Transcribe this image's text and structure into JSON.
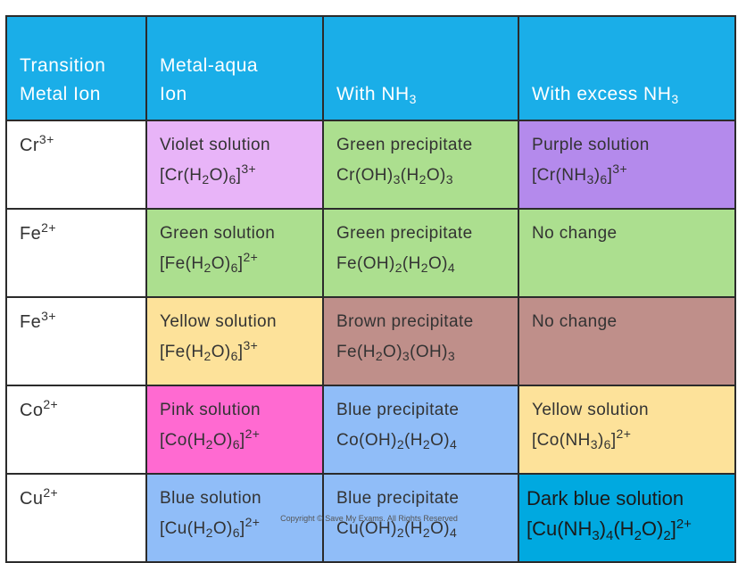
{
  "colors": {
    "header": "#1aaee8",
    "violet": "#e8b4f8",
    "green": "#acdf8f",
    "purple": "#b48aec",
    "yellow": "#fde29a",
    "brown": "#bf8f8a",
    "pink": "#ff6ad1",
    "blue": "#90bdf8",
    "dark_blue": "#00a9e0"
  },
  "header": {
    "col1": [
      "Transition",
      "Metal Ion"
    ],
    "col2": [
      "Metal-aqua",
      "Ion"
    ],
    "col3": "With NH_{3}",
    "col4": "With excess NH_{3}"
  },
  "rows": [
    {
      "ion": "Cr^{3+}",
      "aqua": {
        "desc": "Violet solution",
        "formula": "[Cr(H_{2}O)_{6}]^{3+}",
        "color": "violet"
      },
      "nh3": {
        "desc": "Green precipitate",
        "formula": "Cr(OH)_{3}(H_{2}O)_{3}",
        "color": "green"
      },
      "excess": {
        "desc": "Purple solution",
        "formula": "[Cr(NH_{3})_{6}]^{3+}",
        "color": "purple"
      }
    },
    {
      "ion": "Fe^{2+}",
      "aqua": {
        "desc": "Green solution",
        "formula": "[Fe(H_{2}O)_{6}]^{2+}",
        "color": "green"
      },
      "nh3": {
        "desc": "Green precipitate",
        "formula": "Fe(OH)_{2}(H_{2}O)_{4}",
        "color": "green"
      },
      "excess": {
        "desc": "No change",
        "formula": "",
        "color": "green"
      }
    },
    {
      "ion": "Fe^{3+}",
      "aqua": {
        "desc": "Yellow solution",
        "formula": "[Fe(H_{2}O)_{6}]^{3+}",
        "color": "yellow"
      },
      "nh3": {
        "desc": "Brown precipitate",
        "formula": "Fe(H_{2}O)_{3}(OH)_{3}",
        "color": "brown"
      },
      "excess": {
        "desc": "No change",
        "formula": "",
        "color": "brown"
      }
    },
    {
      "ion": "Co^{2+}",
      "aqua": {
        "desc": "Pink solution",
        "formula": "[Co(H_{2}O)_{6}]^{2+}",
        "color": "pink"
      },
      "nh3": {
        "desc": "Blue precipitate",
        "formula": "Co(OH)_{2}(H_{2}O)_{4}",
        "color": "blue"
      },
      "excess": {
        "desc": "Yellow solution",
        "formula": "[Co(NH_{3})_{6}]^{2+}",
        "color": "yellow"
      }
    },
    {
      "ion": "Cu^{2+}",
      "aqua": {
        "desc": "Blue solution",
        "formula": "[Cu(H_{2}O)_{6}]^{2+}",
        "color": "blue"
      },
      "nh3": {
        "desc": "Blue precipitate",
        "formula": "Cu(OH)_{2}(H_{2}O)_{4}",
        "color": "blue"
      },
      "excess": {
        "desc": "Dark blue solution",
        "formula": "[Cu(NH_{3})_{4}(H_{2}O)_{2}]^{2+}",
        "color": "dark_blue"
      }
    }
  ],
  "copyright": "Copyright © Save My Exams. All Rights Reserved"
}
